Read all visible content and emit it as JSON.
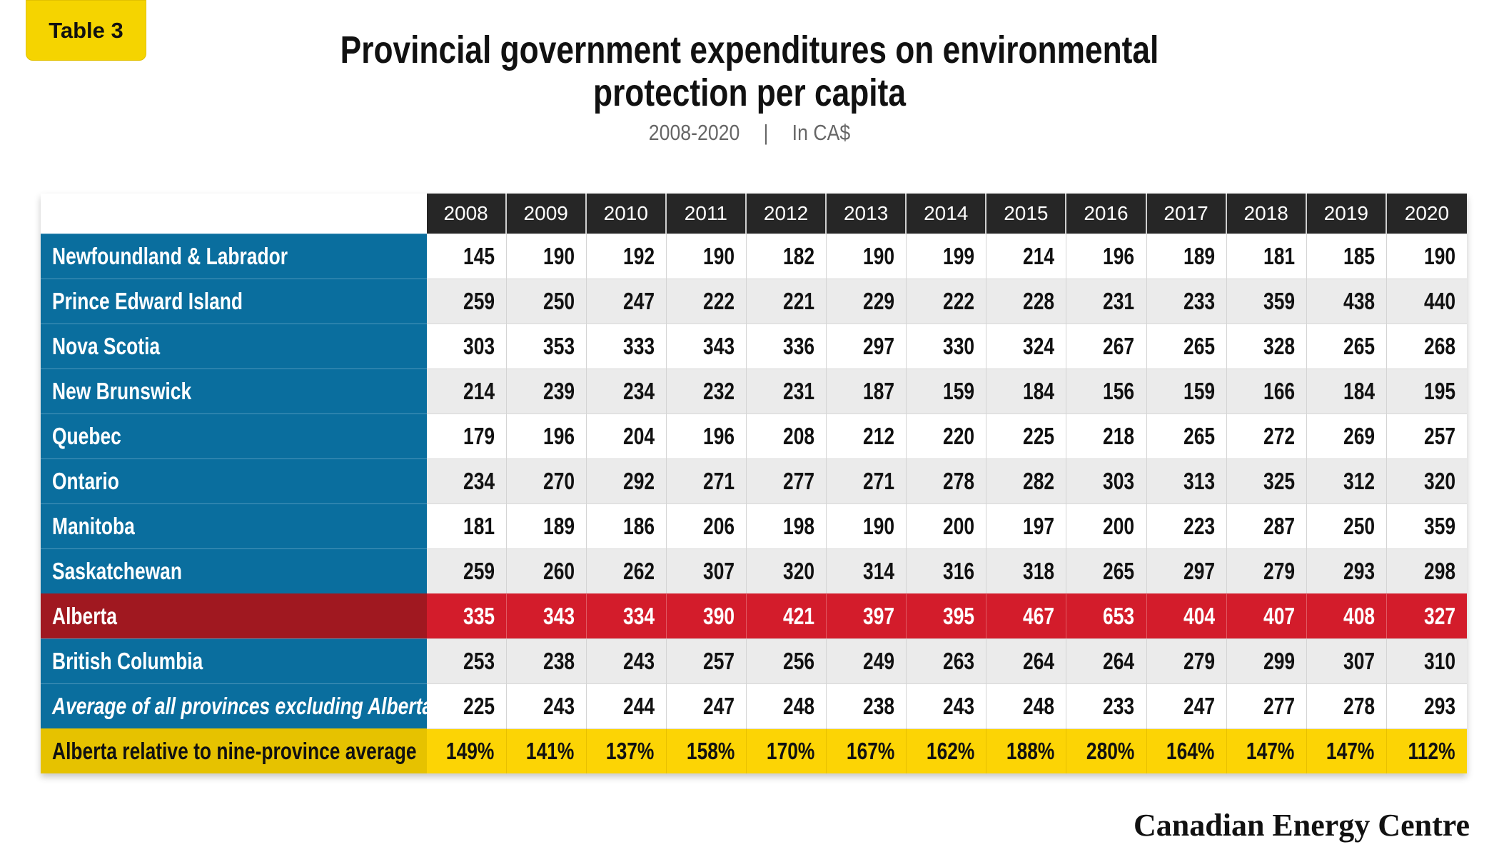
{
  "badge": "Table 3",
  "title_line1": "Provincial government expenditures on environmental",
  "title_line2": "protection per capita",
  "subtitle_years": "2008-2020",
  "subtitle_separator": "|",
  "subtitle_units": "In CA$",
  "brand": "Canadian Energy Centre",
  "colors": {
    "header_bg": "#262626",
    "province_bg": "#0a6e9e",
    "alberta_row": "#d31c2b",
    "alberta_label": "#a01820",
    "relative_row": "#fcd405"
  },
  "chart_data": {
    "type": "table",
    "title": "Provincial government expenditures on environmental protection per capita",
    "columns": [
      "2008",
      "2009",
      "2010",
      "2011",
      "2012",
      "2013",
      "2014",
      "2015",
      "2016",
      "2017",
      "2018",
      "2019",
      "2020"
    ],
    "rows": [
      {
        "label": "Newfoundland & Labrador",
        "values": [
          "145",
          "190",
          "192",
          "190",
          "182",
          "190",
          "199",
          "214",
          "196",
          "189",
          "181",
          "185",
          "190"
        ]
      },
      {
        "label": "Prince Edward Island",
        "values": [
          "259",
          "250",
          "247",
          "222",
          "221",
          "229",
          "222",
          "228",
          "231",
          "233",
          "359",
          "438",
          "440"
        ]
      },
      {
        "label": "Nova Scotia",
        "values": [
          "303",
          "353",
          "333",
          "343",
          "336",
          "297",
          "330",
          "324",
          "267",
          "265",
          "328",
          "265",
          "268"
        ]
      },
      {
        "label": "New Brunswick",
        "values": [
          "214",
          "239",
          "234",
          "232",
          "231",
          "187",
          "159",
          "184",
          "156",
          "159",
          "166",
          "184",
          "195"
        ]
      },
      {
        "label": "Quebec",
        "values": [
          "179",
          "196",
          "204",
          "196",
          "208",
          "212",
          "220",
          "225",
          "218",
          "265",
          "272",
          "269",
          "257"
        ]
      },
      {
        "label": "Ontario",
        "values": [
          "234",
          "270",
          "292",
          "271",
          "277",
          "271",
          "278",
          "282",
          "303",
          "313",
          "325",
          "312",
          "320"
        ]
      },
      {
        "label": "Manitoba",
        "values": [
          "181",
          "189",
          "186",
          "206",
          "198",
          "190",
          "200",
          "197",
          "200",
          "223",
          "287",
          "250",
          "359"
        ]
      },
      {
        "label": "Saskatchewan",
        "values": [
          "259",
          "260",
          "262",
          "307",
          "320",
          "314",
          "316",
          "318",
          "265",
          "297",
          "279",
          "293",
          "298"
        ]
      },
      {
        "label": "Alberta",
        "values": [
          "335",
          "343",
          "334",
          "390",
          "421",
          "397",
          "395",
          "467",
          "653",
          "404",
          "407",
          "408",
          "327"
        ]
      },
      {
        "label": "British Columbia",
        "values": [
          "253",
          "238",
          "243",
          "257",
          "256",
          "249",
          "263",
          "264",
          "264",
          "279",
          "299",
          "307",
          "310"
        ]
      },
      {
        "label": "Average of all provinces excluding Alberta",
        "values": [
          "225",
          "243",
          "244",
          "247",
          "248",
          "238",
          "243",
          "248",
          "233",
          "247",
          "277",
          "278",
          "293"
        ]
      },
      {
        "label": "Alberta relative to nine-province average",
        "values": [
          "149%",
          "141%",
          "137%",
          "158%",
          "170%",
          "167%",
          "162%",
          "188%",
          "280%",
          "164%",
          "147%",
          "147%",
          "112%"
        ]
      }
    ]
  }
}
